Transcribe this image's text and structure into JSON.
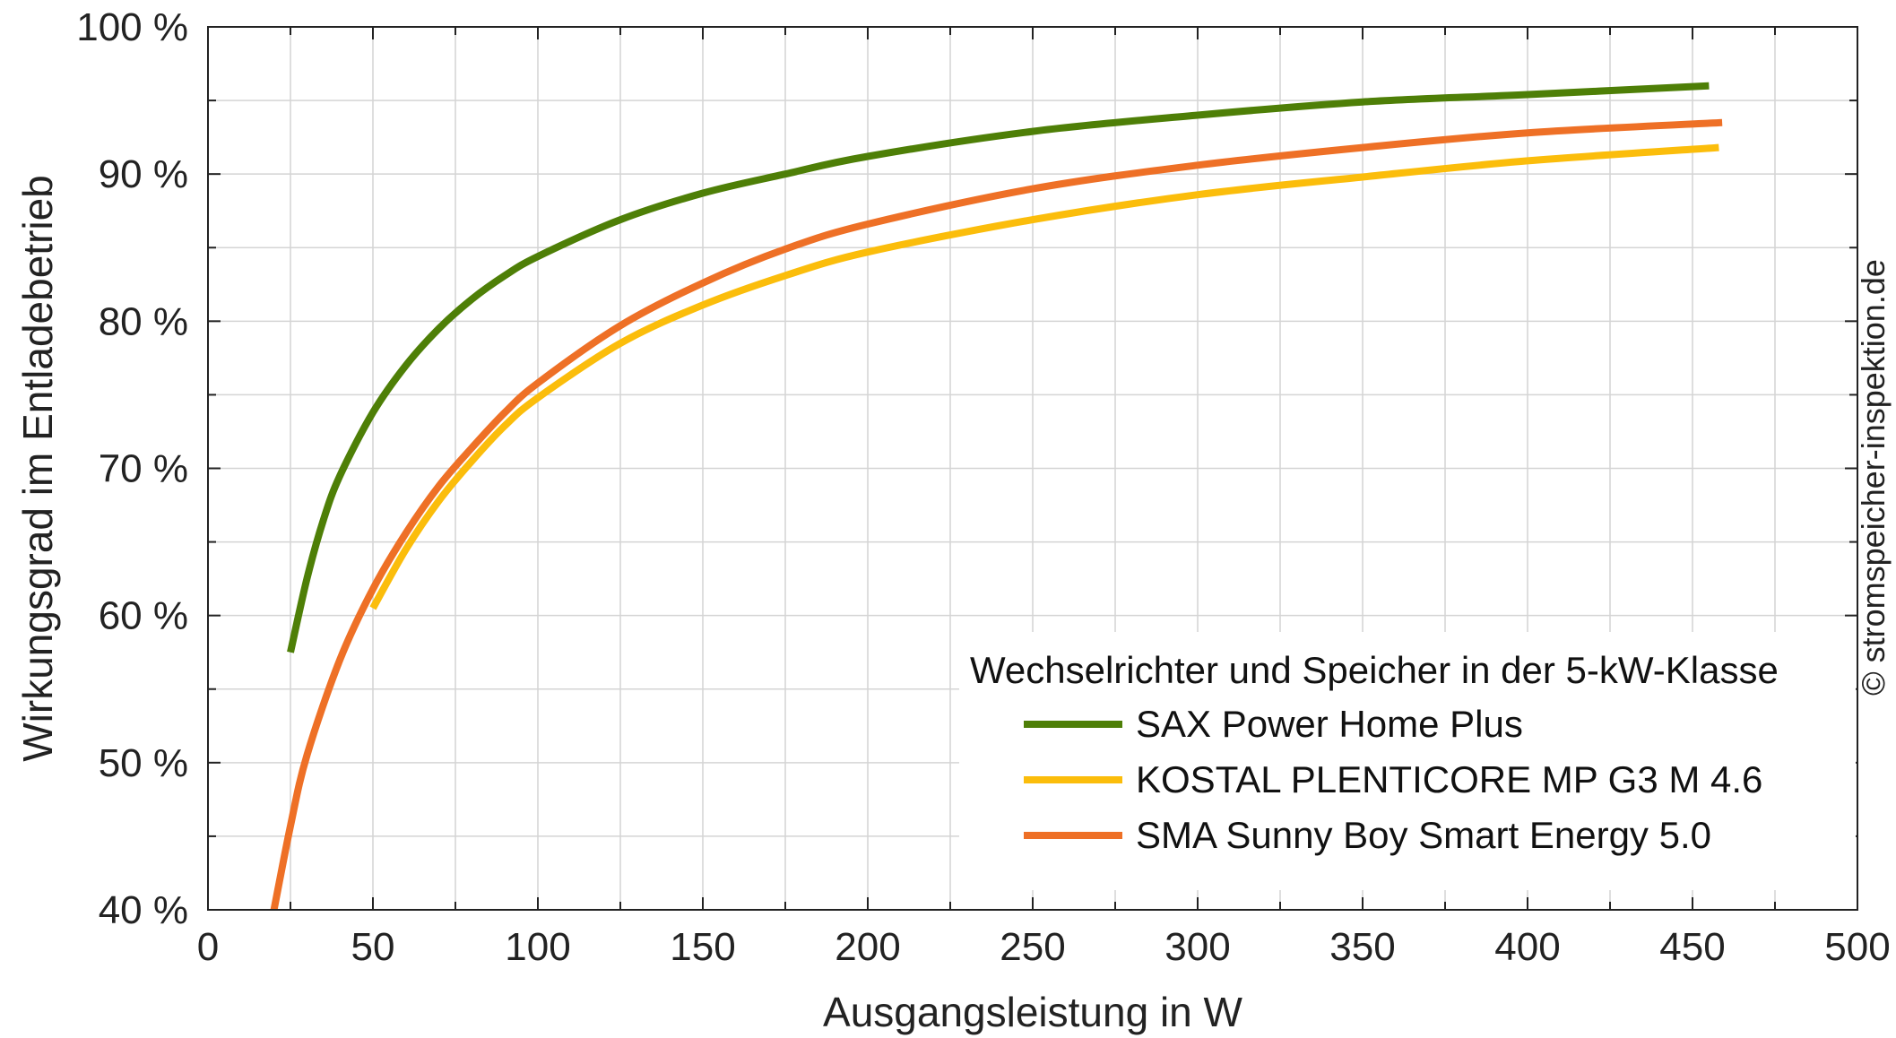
{
  "chart_data": {
    "type": "line",
    "xlabel": "Ausgangsleistung in W",
    "ylabel": "Wirkungsgrad im Entladebetrieb",
    "xlim": [
      0,
      500
    ],
    "ylim": [
      40,
      100
    ],
    "x_ticks": [
      0,
      50,
      100,
      150,
      200,
      250,
      300,
      350,
      400,
      450,
      500
    ],
    "y_ticks": [
      40,
      50,
      60,
      70,
      80,
      90,
      100
    ],
    "y_tick_labels": [
      "40 %",
      "50 %",
      "60 %",
      "70 %",
      "80 %",
      "90 %",
      "100 %"
    ],
    "grid": true,
    "legend": {
      "title": "Wechselrichter und Speicher in der 5-kW-Klasse",
      "position": "bottom-right"
    },
    "series": [
      {
        "name": "SAX Power Home Plus",
        "color": "#4e7f07",
        "x": [
          25,
          30,
          35,
          40,
          50,
          60,
          70,
          80,
          90,
          100,
          125,
          150,
          175,
          200,
          250,
          300,
          350,
          400,
          455
        ],
        "y": [
          57.5,
          62.5,
          66.5,
          69.5,
          73.8,
          77.0,
          79.5,
          81.5,
          83.1,
          84.4,
          86.9,
          88.7,
          90.0,
          91.2,
          92.9,
          94.0,
          94.9,
          95.4,
          96.0
        ]
      },
      {
        "name": "KOSTAL PLENTICORE MP G3 M 4.6",
        "color": "#fbbd0b",
        "x": [
          50,
          60,
          70,
          80,
          90,
          100,
          125,
          150,
          175,
          200,
          250,
          300,
          350,
          400,
          458
        ],
        "y": [
          60.5,
          64.5,
          67.8,
          70.5,
          72.9,
          74.8,
          78.5,
          81.1,
          83.1,
          84.7,
          86.9,
          88.6,
          89.8,
          90.9,
          91.8
        ]
      },
      {
        "name": "SMA Sunny Boy Smart Energy 5.0",
        "color": "#ee7026",
        "x": [
          20,
          25,
          30,
          40,
          50,
          60,
          70,
          80,
          90,
          100,
          125,
          150,
          175,
          200,
          250,
          300,
          350,
          400,
          459
        ],
        "y": [
          40.0,
          45.7,
          50.5,
          57.0,
          61.8,
          65.6,
          68.8,
          71.4,
          73.8,
          75.8,
          79.7,
          82.6,
          84.9,
          86.6,
          89.0,
          90.6,
          91.8,
          92.8,
          93.5
        ]
      }
    ]
  },
  "watermark": "© stromspeicher-inspektion.de"
}
